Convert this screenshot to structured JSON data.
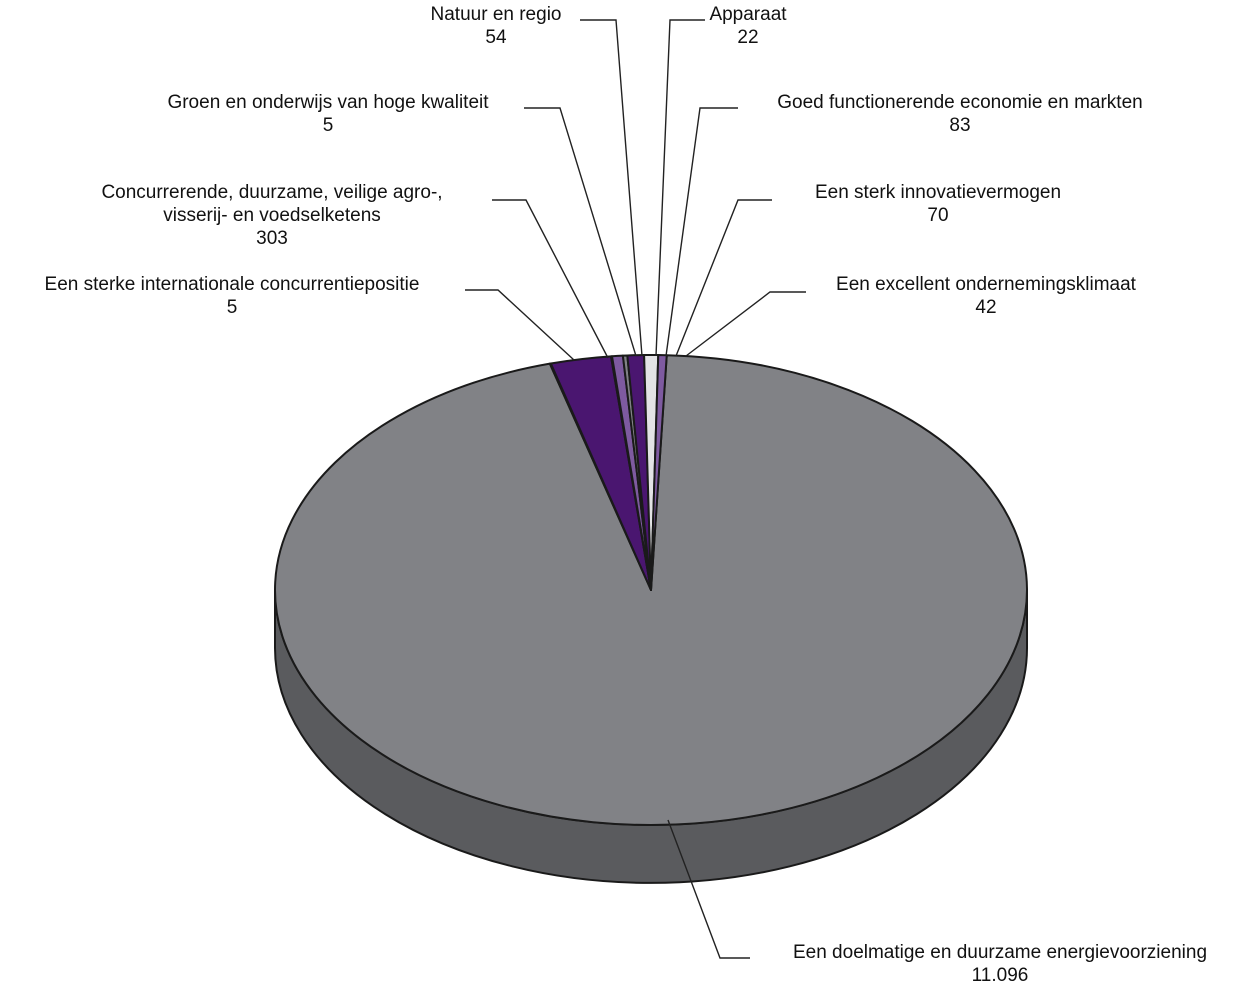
{
  "chart_data": {
    "type": "pie",
    "style": "3d",
    "title": "",
    "slices": [
      {
        "label": [
          "Een doelmatige en duurzame energievoorziening"
        ],
        "value_label": "11.096",
        "value": 11096,
        "color": "#818286"
      },
      {
        "label": [
          "Een sterke internationale concurrentiepositie"
        ],
        "value_label": "5",
        "value": 5,
        "color": "#818286"
      },
      {
        "label": [
          "Concurrerende, duurzame, veilige agro-,",
          "visserij- en voedselketens"
        ],
        "value_label": "303",
        "value": 303,
        "color": "#4a1670"
      },
      {
        "label": [
          "Groen en onderwijs van hoge kwaliteit"
        ],
        "value_label": "5",
        "value": 5,
        "color": "#818286"
      },
      {
        "label": [
          "Natuur en regio"
        ],
        "value_label": "54",
        "value": 54,
        "color": "#7e5aa0"
      },
      {
        "label": [
          "Apparaat"
        ],
        "value_label": "22",
        "value": 22,
        "color": "#818286"
      },
      {
        "label": [
          "Goed functionerende economie en markten"
        ],
        "value_label": "83",
        "value": 83,
        "color": "#4a1670"
      },
      {
        "label": [
          "Een sterk innovatievermogen"
        ],
        "value_label": "70",
        "value": 70,
        "color": "#e3e3e5"
      },
      {
        "label": [
          "Een excellent ondernemingsklimaat"
        ],
        "value_label": "42",
        "value": 42,
        "color": "#7e5aa0"
      }
    ]
  }
}
